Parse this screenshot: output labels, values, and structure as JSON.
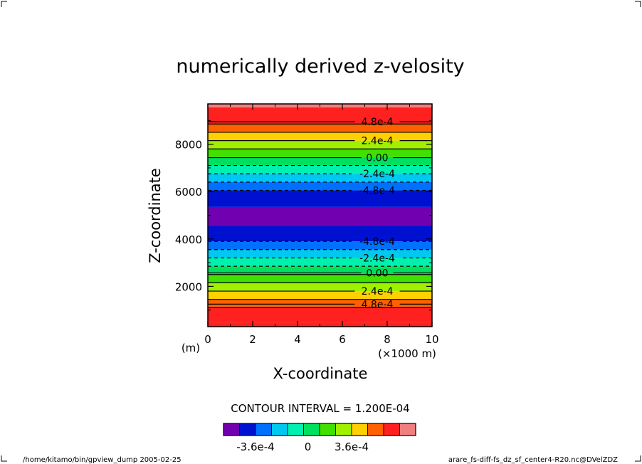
{
  "chart_data": {
    "type": "heatmap",
    "title": "numerically derived z-velosity",
    "xlabel": "X-coordinate",
    "ylabel": "Z-coordinate",
    "x_unit_left": "(m)",
    "x_unit_right": "(×1000 m)",
    "xlim": [
      0,
      10
    ],
    "ylim": [
      300,
      9700
    ],
    "x_ticks": [
      "0",
      "2",
      "4",
      "6",
      "8",
      "10"
    ],
    "x_tick_values": [
      0,
      2,
      4,
      6,
      8,
      10
    ],
    "y_ticks": [
      "2000",
      "4000",
      "6000",
      "8000"
    ],
    "y_tick_values": [
      2000,
      4000,
      6000,
      8000
    ],
    "bands": [
      {
        "z0": 300,
        "z1": 500,
        "color": "#ff2020"
      },
      {
        "z0": 500,
        "z1": 1100,
        "color": "#ff2020"
      },
      {
        "z0": 1100,
        "z1": 1450,
        "color": "#ff6000"
      },
      {
        "z0": 1450,
        "z1": 1800,
        "color": "#ffd000"
      },
      {
        "z0": 1800,
        "z1": 2150,
        "color": "#a0f000"
      },
      {
        "z0": 2150,
        "z1": 2500,
        "color": "#40e000"
      },
      {
        "z0": 2500,
        "z1": 2850,
        "color": "#00e060"
      },
      {
        "z0": 2850,
        "z1": 3200,
        "color": "#00f0b0"
      },
      {
        "z0": 3200,
        "z1": 3550,
        "color": "#00c8f0"
      },
      {
        "z0": 3550,
        "z1": 3900,
        "color": "#0070ff"
      },
      {
        "z0": 3900,
        "z1": 4550,
        "color": "#0010d0"
      },
      {
        "z0": 4550,
        "z1": 5350,
        "color": "#7000b0"
      },
      {
        "z0": 5350,
        "z1": 6050,
        "color": "#0010d0"
      },
      {
        "z0": 6050,
        "z1": 6400,
        "color": "#0070ff"
      },
      {
        "z0": 6400,
        "z1": 6750,
        "color": "#00c8f0"
      },
      {
        "z0": 6750,
        "z1": 7100,
        "color": "#00f0b0"
      },
      {
        "z0": 7100,
        "z1": 7450,
        "color": "#00e060"
      },
      {
        "z0": 7450,
        "z1": 7800,
        "color": "#40e000"
      },
      {
        "z0": 7800,
        "z1": 8150,
        "color": "#a0f000"
      },
      {
        "z0": 8150,
        "z1": 8500,
        "color": "#ffd000"
      },
      {
        "z0": 8500,
        "z1": 8850,
        "color": "#ff6000"
      },
      {
        "z0": 8850,
        "z1": 9550,
        "color": "#ff2020"
      },
      {
        "z0": 9550,
        "z1": 9700,
        "color": "#f08080"
      }
    ],
    "contours": [
      {
        "z": 1100,
        "dashed": false,
        "label": ""
      },
      {
        "z": 1250,
        "dashed": false,
        "label": "4.8e-4"
      },
      {
        "z": 1450,
        "dashed": false,
        "label": ""
      },
      {
        "z": 1800,
        "dashed": false,
        "label": "2.4e-4"
      },
      {
        "z": 2150,
        "dashed": false,
        "label": ""
      },
      {
        "z": 2500,
        "dashed": false,
        "label": ""
      },
      {
        "z": 2570,
        "dashed": false,
        "label": "0.00"
      },
      {
        "z": 2850,
        "dashed": true,
        "label": ""
      },
      {
        "z": 3200,
        "dashed": true,
        "label": "-2.4e-4"
      },
      {
        "z": 3550,
        "dashed": true,
        "label": ""
      },
      {
        "z": 3900,
        "dashed": true,
        "label": "-4.8e-4"
      },
      {
        "z": 6050,
        "dashed": true,
        "label": "-4.8e-4"
      },
      {
        "z": 6400,
        "dashed": true,
        "label": ""
      },
      {
        "z": 6750,
        "dashed": true,
        "label": "-2.4e-4"
      },
      {
        "z": 7100,
        "dashed": true,
        "label": ""
      },
      {
        "z": 7430,
        "dashed": false,
        "label": "0.00"
      },
      {
        "z": 7800,
        "dashed": false,
        "label": ""
      },
      {
        "z": 8150,
        "dashed": false,
        "label": "2.4e-4"
      },
      {
        "z": 8500,
        "dashed": false,
        "label": ""
      },
      {
        "z": 8850,
        "dashed": false,
        "label": ""
      },
      {
        "z": 8950,
        "dashed": false,
        "label": "4.8e-4"
      }
    ],
    "contour_interval": "CONTOUR INTERVAL = 1.200E-04",
    "colorbar": {
      "colors": [
        "#7000b0",
        "#0010d0",
        "#0070ff",
        "#00c8f0",
        "#00f0b0",
        "#00e060",
        "#40e000",
        "#a0f000",
        "#ffd000",
        "#ff6000",
        "#ff2020",
        "#f08080"
      ],
      "labels": [
        "-3.6e-4",
        "0",
        "3.6e-4"
      ],
      "label_positions": [
        2,
        5,
        8
      ]
    }
  },
  "footer": {
    "left": "/home/kitamo/bin/gpview_dump  2005-02-25",
    "right": "arare_fs-diff-fs_dz_sf_center4-R20.nc@DVelZDZ"
  }
}
